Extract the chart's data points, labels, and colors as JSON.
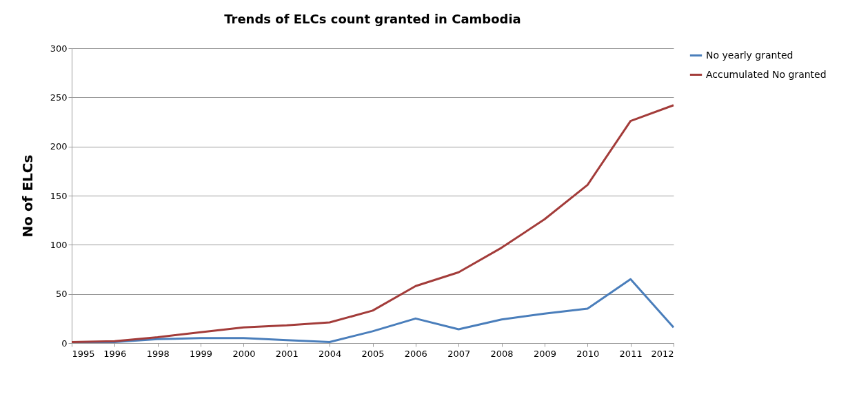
{
  "chart_data": {
    "type": "line",
    "title": "Trends of ELCs count granted in Cambodia",
    "ylabel": "No of ELCs",
    "categories": [
      "1995",
      "1996",
      "1998",
      "1999",
      "2000",
      "2001",
      "2004",
      "2005",
      "2006",
      "2007",
      "2008",
      "2009",
      "2010",
      "2011",
      "2012"
    ],
    "series": [
      {
        "name": "No yearly granted",
        "color": "#4a7ebb",
        "values": [
          1,
          1,
          4,
          5,
          5,
          3,
          1,
          12,
          25,
          14,
          24,
          30,
          35,
          65,
          16
        ]
      },
      {
        "name": "Accumulated No granted",
        "color": "#a33c3a",
        "values": [
          1,
          2,
          6,
          11,
          16,
          18,
          21,
          33,
          58,
          72,
          97,
          126,
          161,
          226,
          242
        ]
      }
    ],
    "ylim": [
      0,
      300
    ],
    "yticks": [
      0,
      50,
      100,
      150,
      200,
      250,
      300
    ],
    "grid": "y",
    "legend": "right",
    "marker": "none",
    "line_style": "solid"
  }
}
